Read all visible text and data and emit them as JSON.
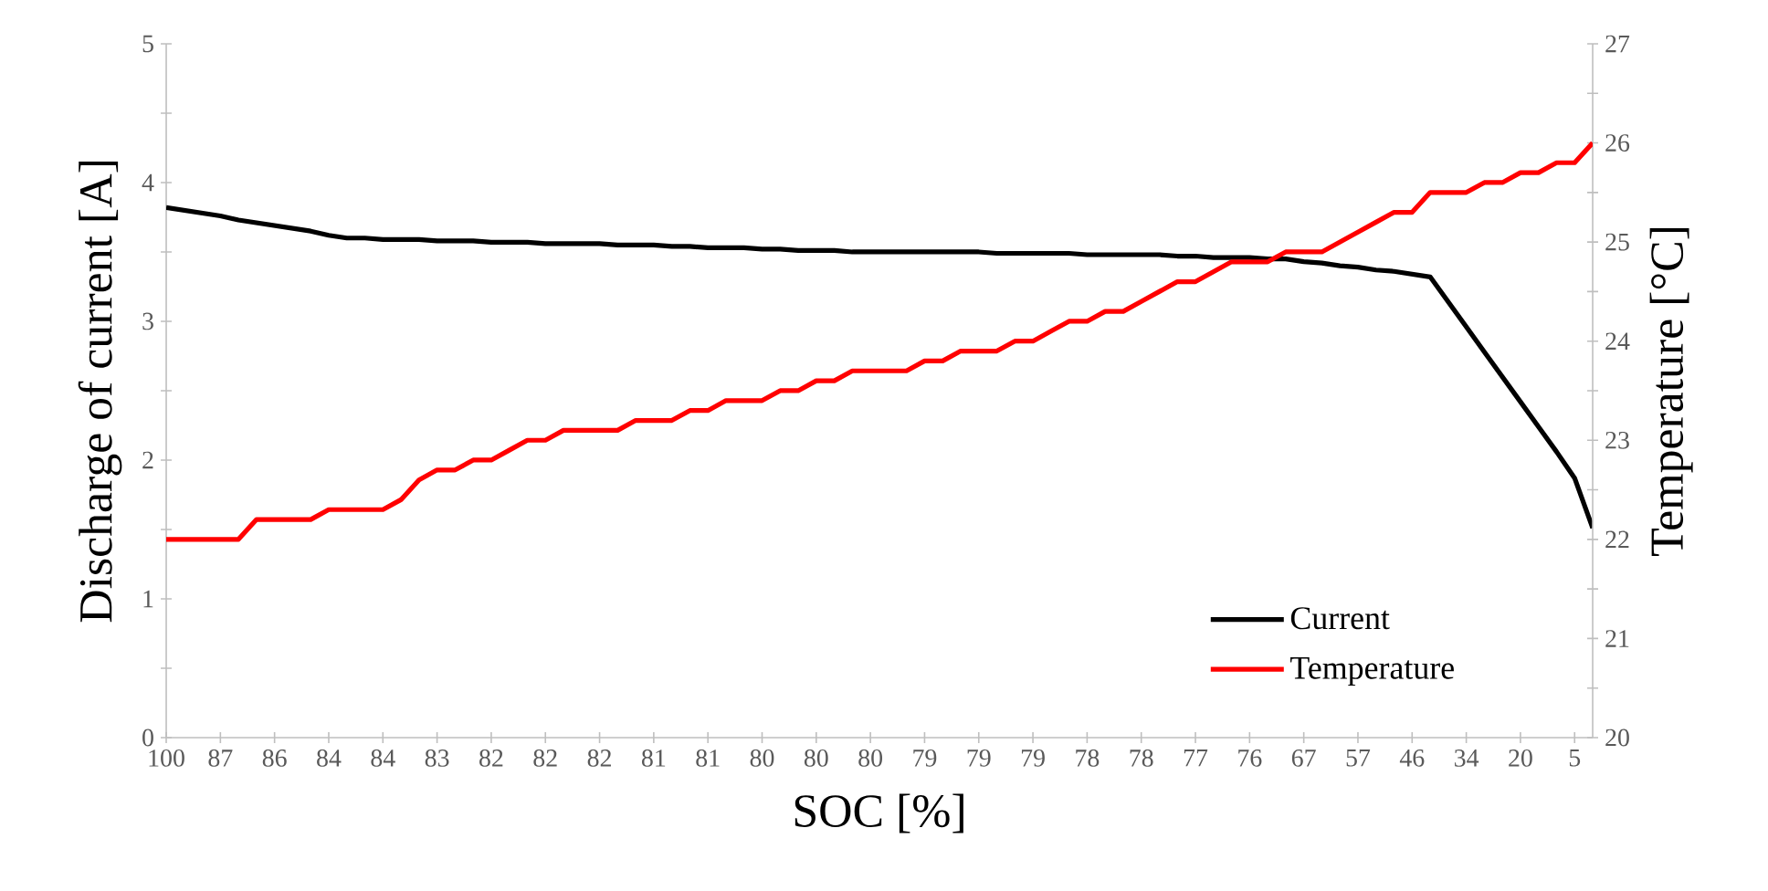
{
  "chart_data": {
    "type": "line",
    "xlabel": "SOC [%]",
    "ylabel": "Discharge of current [A]",
    "y2label": "Temperature [°C]",
    "categories": [
      "100",
      null,
      null,
      "87",
      null,
      null,
      "86",
      null,
      null,
      "84",
      null,
      null,
      "84",
      null,
      null,
      "83",
      null,
      null,
      "82",
      null,
      null,
      "82",
      null,
      null,
      "82",
      null,
      null,
      "81",
      null,
      null,
      "81",
      null,
      null,
      "80",
      null,
      null,
      "80",
      null,
      null,
      "80",
      null,
      null,
      "79",
      null,
      null,
      "79",
      null,
      null,
      "79",
      null,
      null,
      "78",
      null,
      null,
      "78",
      null,
      null,
      "77",
      null,
      null,
      "76",
      null,
      null,
      "67",
      null,
      null,
      "57",
      null,
      null,
      "46",
      null,
      null,
      "34",
      null,
      null,
      "20",
      null,
      null,
      "5",
      null
    ],
    "series": [
      {
        "name": "Current",
        "color": "#000000",
        "values": [
          3.82,
          3.8,
          3.78,
          3.76,
          3.73,
          3.71,
          3.69,
          3.67,
          3.65,
          3.62,
          3.6,
          3.6,
          3.59,
          3.59,
          3.59,
          3.58,
          3.58,
          3.58,
          3.57,
          3.57,
          3.57,
          3.56,
          3.56,
          3.56,
          3.56,
          3.55,
          3.55,
          3.55,
          3.54,
          3.54,
          3.53,
          3.53,
          3.53,
          3.52,
          3.52,
          3.51,
          3.51,
          3.51,
          3.5,
          3.5,
          3.5,
          3.5,
          3.5,
          3.5,
          3.5,
          3.5,
          3.49,
          3.49,
          3.49,
          3.49,
          3.49,
          3.48,
          3.48,
          3.48,
          3.48,
          3.48,
          3.47,
          3.47,
          3.46,
          3.46,
          3.46,
          3.45,
          3.45,
          3.43,
          3.42,
          3.4,
          3.39,
          3.37,
          3.36,
          3.34,
          3.32,
          3.14,
          2.96,
          2.78,
          2.6,
          2.42,
          2.24,
          2.06,
          1.87,
          1.51
        ]
      },
      {
        "name": "Temperature",
        "color": "#ff0000",
        "axis": "y2",
        "values": [
          22.0,
          22.0,
          22.0,
          22.0,
          22.0,
          22.2,
          22.2,
          22.2,
          22.2,
          22.3,
          22.3,
          22.3,
          22.3,
          22.4,
          22.6,
          22.7,
          22.7,
          22.8,
          22.8,
          22.9,
          23.0,
          23.0,
          23.1,
          23.1,
          23.1,
          23.1,
          23.2,
          23.2,
          23.2,
          23.3,
          23.3,
          23.4,
          23.4,
          23.4,
          23.5,
          23.5,
          23.6,
          23.6,
          23.7,
          23.7,
          23.7,
          23.7,
          23.8,
          23.8,
          23.9,
          23.9,
          23.9,
          24.0,
          24.0,
          24.1,
          24.2,
          24.2,
          24.3,
          24.3,
          24.4,
          24.5,
          24.6,
          24.6,
          24.7,
          24.8,
          24.8,
          24.8,
          24.9,
          24.9,
          24.9,
          25.0,
          25.1,
          25.2,
          25.3,
          25.3,
          25.5,
          25.5,
          25.5,
          25.6,
          25.6,
          25.7,
          25.7,
          25.8,
          25.8,
          26.0
        ]
      }
    ],
    "ylim": [
      0,
      5
    ],
    "yticks": [
      0,
      {
        "value": 0.5,
        "label": null
      },
      1,
      {
        "value": 1.5,
        "label": null
      },
      2,
      {
        "value": 2.5,
        "label": null
      },
      3,
      {
        "value": 3.5,
        "label": null
      },
      4,
      {
        "value": 4.5,
        "label": null
      },
      5
    ],
    "y2lim": [
      20,
      27
    ],
    "y2ticks": [
      20,
      {
        "value": 20.5,
        "label": null
      },
      21,
      {
        "value": 21.5,
        "label": null
      },
      22,
      {
        "value": 22.5,
        "label": null
      },
      23,
      {
        "value": 23.5,
        "label": null
      },
      24,
      {
        "value": 24.5,
        "label": null
      },
      25,
      {
        "value": 25.5,
        "label": null
      },
      26,
      {
        "value": 26.5,
        "label": null
      },
      27
    ],
    "legend": "bottom right",
    "marker": "none",
    "line_style": "solid"
  }
}
